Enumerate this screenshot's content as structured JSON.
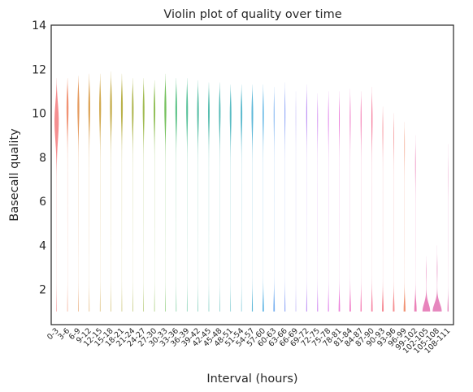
{
  "chart_data": {
    "type": "violin",
    "title": "Violin plot of quality over time",
    "xlabel": "Interval (hours)",
    "ylabel": "Basecall quality",
    "ylim": [
      0.4,
      14
    ],
    "yticks": [
      2,
      4,
      6,
      8,
      10,
      12,
      14
    ],
    "grid": false,
    "legend": "none",
    "categories": [
      "0-3",
      "3-6",
      "6-9",
      "9-12",
      "12-15",
      "15-18",
      "18-21",
      "21-24",
      "24-27",
      "27-30",
      "30-33",
      "33-36",
      "36-39",
      "39-42",
      "42-45",
      "45-48",
      "48-51",
      "51-54",
      "54-57",
      "57-60",
      "60-63",
      "63-66",
      "66-69",
      "69-72",
      "72-75",
      "75-78",
      "78-81",
      "81-84",
      "84-87",
      "87-90",
      "90-93",
      "93-96",
      "96-99",
      "99-102",
      "102-105",
      "105-108",
      "108-111"
    ],
    "colors": [
      "#f3797b",
      "#ee7f5b",
      "#e08740",
      "#d69133",
      "#c9992c",
      "#bb9f2c",
      "#aea52c",
      "#a0a82d",
      "#8fae2f",
      "#79b232",
      "#5bb53d",
      "#3ab66f",
      "#35b585",
      "#37b394",
      "#38b2a1",
      "#39b0ad",
      "#3aafb8",
      "#3cadc4",
      "#3eaad1",
      "#41a7e0",
      "#5b9fed",
      "#7b97f4",
      "#9a8df5",
      "#b583f3",
      "#c977f0",
      "#da6be9",
      "#e867d4",
      "#ef66bf",
      "#f36aa8",
      "#f56f92",
      "#f5737f",
      "#f3797b",
      "#ee7f5b",
      "#e86aac",
      "#e46eb0",
      "#e272b3",
      "#e075b4"
    ],
    "series": [
      {
        "category": "0-3",
        "min": 1.0,
        "max": 11.6,
        "bulge_at": 10.0,
        "bulge_width": 0.35,
        "base_width": 0.02
      },
      {
        "category": "3-6",
        "min": 1.0,
        "max": 11.6,
        "bulge_at": 10.8,
        "bulge_width": 0.25,
        "base_width": 0.02
      },
      {
        "category": "6-9",
        "min": 1.0,
        "max": 11.7,
        "bulge_at": 10.8,
        "bulge_width": 0.22,
        "base_width": 0.02
      },
      {
        "category": "9-12",
        "min": 1.0,
        "max": 11.8,
        "bulge_at": 10.8,
        "bulge_width": 0.2,
        "base_width": 0.02
      },
      {
        "category": "12-15",
        "min": 1.0,
        "max": 11.8,
        "bulge_at": 10.8,
        "bulge_width": 0.2,
        "base_width": 0.02
      },
      {
        "category": "15-18",
        "min": 1.0,
        "max": 11.9,
        "bulge_at": 10.8,
        "bulge_width": 0.2,
        "base_width": 0.02
      },
      {
        "category": "18-21",
        "min": 1.0,
        "max": 11.8,
        "bulge_at": 10.8,
        "bulge_width": 0.2,
        "base_width": 0.02
      },
      {
        "category": "21-24",
        "min": 1.0,
        "max": 11.6,
        "bulge_at": 10.7,
        "bulge_width": 0.2,
        "base_width": 0.02
      },
      {
        "category": "24-27",
        "min": 1.0,
        "max": 11.6,
        "bulge_at": 10.7,
        "bulge_width": 0.2,
        "base_width": 0.02
      },
      {
        "category": "27-30",
        "min": 1.0,
        "max": 11.5,
        "bulge_at": 10.7,
        "bulge_width": 0.2,
        "base_width": 0.02
      },
      {
        "category": "30-33",
        "min": 1.0,
        "max": 11.8,
        "bulge_at": 10.7,
        "bulge_width": 0.2,
        "base_width": 0.02
      },
      {
        "category": "33-36",
        "min": 1.0,
        "max": 11.6,
        "bulge_at": 10.7,
        "bulge_width": 0.2,
        "base_width": 0.02
      },
      {
        "category": "36-39",
        "min": 1.0,
        "max": 11.6,
        "bulge_at": 10.7,
        "bulge_width": 0.2,
        "base_width": 0.02
      },
      {
        "category": "39-42",
        "min": 1.0,
        "max": 11.5,
        "bulge_at": 10.6,
        "bulge_width": 0.2,
        "base_width": 0.02
      },
      {
        "category": "42-45",
        "min": 1.0,
        "max": 11.4,
        "bulge_at": 10.6,
        "bulge_width": 0.2,
        "base_width": 0.02
      },
      {
        "category": "45-48",
        "min": 1.0,
        "max": 11.4,
        "bulge_at": 10.6,
        "bulge_width": 0.2,
        "base_width": 0.02
      },
      {
        "category": "48-51",
        "min": 1.0,
        "max": 11.3,
        "bulge_at": 10.5,
        "bulge_width": 0.2,
        "base_width": 0.02
      },
      {
        "category": "51-54",
        "min": 1.0,
        "max": 11.3,
        "bulge_at": 10.5,
        "bulge_width": 0.2,
        "base_width": 0.02
      },
      {
        "category": "54-57",
        "min": 1.0,
        "max": 11.3,
        "bulge_at": 10.5,
        "bulge_width": 0.2,
        "base_width": 0.04
      },
      {
        "category": "57-60",
        "min": 1.0,
        "max": 11.3,
        "bulge_at": 10.5,
        "bulge_width": 0.15,
        "base_width": 0.06
      },
      {
        "category": "60-63",
        "min": 1.0,
        "max": 11.2,
        "bulge_at": 10.5,
        "bulge_width": 0.1,
        "base_width": 0.06
      },
      {
        "category": "63-66",
        "min": 1.0,
        "max": 11.4,
        "bulge_at": 10.5,
        "bulge_width": 0.1,
        "base_width": 0.04
      },
      {
        "category": "66-69",
        "min": 1.0,
        "max": 11.0,
        "bulge_at": 10.5,
        "bulge_width": 0.05,
        "base_width": 0.02
      },
      {
        "category": "69-72",
        "min": 1.0,
        "max": 11.3,
        "bulge_at": 10.5,
        "bulge_width": 0.12,
        "base_width": 0.04
      },
      {
        "category": "72-75",
        "min": 1.0,
        "max": 10.9,
        "bulge_at": 10.3,
        "bulge_width": 0.1,
        "base_width": 0.04
      },
      {
        "category": "75-78",
        "min": 1.0,
        "max": 11.0,
        "bulge_at": 10.3,
        "bulge_width": 0.1,
        "base_width": 0.04
      },
      {
        "category": "78-81",
        "min": 1.0,
        "max": 11.0,
        "bulge_at": 10.3,
        "bulge_width": 0.1,
        "base_width": 0.06
      },
      {
        "category": "81-84",
        "min": 1.0,
        "max": 11.1,
        "bulge_at": 10.3,
        "bulge_width": 0.1,
        "base_width": 0.06
      },
      {
        "category": "84-87",
        "min": 1.0,
        "max": 11.0,
        "bulge_at": 10.3,
        "bulge_width": 0.12,
        "base_width": 0.05
      },
      {
        "category": "87-90",
        "min": 1.0,
        "max": 11.2,
        "bulge_at": 10.2,
        "bulge_width": 0.12,
        "base_width": 0.06
      },
      {
        "category": "90-93",
        "min": 1.0,
        "max": 10.3,
        "bulge_at": 9.8,
        "bulge_width": 0.1,
        "base_width": 0.07
      },
      {
        "category": "93-96",
        "min": 1.0,
        "max": 10.0,
        "bulge_at": 9.5,
        "bulge_width": 0.08,
        "base_width": 0.07
      },
      {
        "category": "96-99",
        "min": 1.0,
        "max": 9.6,
        "bulge_at": 9.0,
        "bulge_width": 0.06,
        "base_width": 0.08
      },
      {
        "category": "99-102",
        "min": 1.0,
        "max": 9.0,
        "bulge_at": 8.0,
        "bulge_width": 0.05,
        "base_width": 0.1
      },
      {
        "category": "102-105",
        "min": 1.0,
        "max": 3.5,
        "bulge_at": 3.0,
        "bulge_width": 0.02,
        "base_width": 0.32
      },
      {
        "category": "105-108",
        "min": 1.0,
        "max": 4.0,
        "bulge_at": 3.0,
        "bulge_width": 0.02,
        "base_width": 0.38
      },
      {
        "category": "108-111",
        "min": 1.0,
        "max": 8.6,
        "bulge_at": 7.5,
        "bulge_width": 0.02,
        "base_width": 0.05
      }
    ]
  }
}
